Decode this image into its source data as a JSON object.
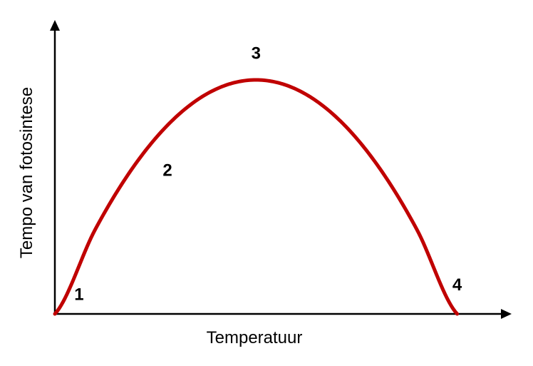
{
  "chart_data": {
    "type": "line",
    "title": "",
    "xlabel": "Temperatuur",
    "ylabel": "Tempo van fotosintese",
    "x": [
      0,
      0.1,
      0.2,
      0.3,
      0.4,
      0.5,
      0.6,
      0.7,
      0.8,
      0.9,
      1.0
    ],
    "series": [
      {
        "color": "#c00000",
        "values": [
          0,
          0.36,
          0.64,
          0.84,
          0.96,
          1.0,
          0.96,
          0.84,
          0.64,
          0.36,
          0
        ]
      }
    ],
    "annotations": [
      {
        "text": "1",
        "x": 0.06,
        "y": 0.06
      },
      {
        "text": "2",
        "x": 0.28,
        "y": 0.59
      },
      {
        "text": "3",
        "x": 0.5,
        "y": 1.09
      },
      {
        "text": "4",
        "x": 1.0,
        "y": 0.1
      }
    ],
    "xlim": [
      0,
      1.13
    ],
    "ylim": [
      0,
      1.25
    ],
    "grid": false,
    "legend": "none"
  }
}
